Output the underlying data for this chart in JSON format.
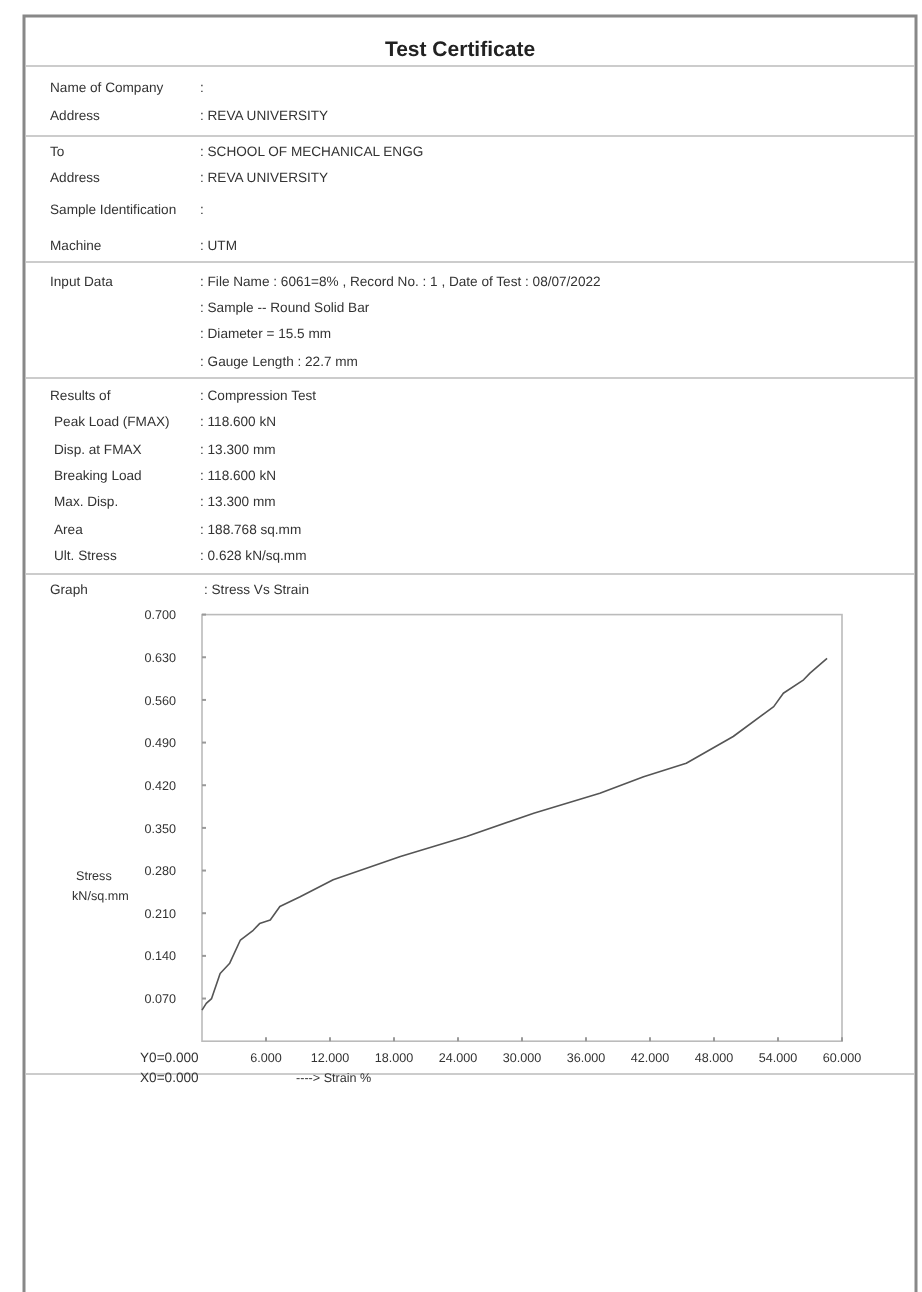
{
  "chart_data": {
    "type": "line",
    "title": "Test Certificate",
    "subtitle": ": Stress Vs Strain",
    "xlabel": "----> Strain  %",
    "ylabel": "Stress kN/sq.mm",
    "annotations": [
      "Name of Company",
      ":",
      "Address",
      ": REVA UNIVERSITY",
      "To",
      ": SCHOOL OF MECHANICAL ENGG",
      "Address",
      ": REVA UNIVERSITY",
      "Sample Identification",
      ":",
      "Machine",
      ":   UTM",
      "Input Data",
      ": File Name : 6061=8% ,    Record No. :  1 ,   Date of Test : 08/07/2022",
      ": Sample -- Round Solid Bar",
      ": Diameter =  15.5 mm",
      ": Gauge Length :  22.7 mm",
      "Results of",
      ": Compression Test",
      "Peak Load (FMAX)",
      ": 118.600  kN",
      "Disp. at FMAX",
      ": 13.300  mm",
      "Breaking Load",
      ": 118.600  kN",
      "Max. Disp.",
      ": 13.300  mm",
      "Area",
      ": 188.768  sq.mm",
      "Ult. Stress",
      ": 0.628  kN/sq.mm",
      "Graph",
      "Y0=0.000",
      "X0=0.000"
    ],
    "series": [
      {
        "color": "#555555",
        "x": [
          0,
          0.4,
          0.9,
          1.7,
          2.6,
          3.6,
          4.8,
          5.4,
          6.4,
          7.3,
          9.2,
          12.3,
          18.6,
          24.8,
          31.1,
          37.3,
          41.4,
          45.4,
          49.8,
          53.6,
          54.5,
          56.4,
          57,
          58.6
        ],
        "values": [
          0.051,
          0.062,
          0.07,
          0.111,
          0.128,
          0.166,
          0.182,
          0.193,
          0.199,
          0.221,
          0.237,
          0.265,
          0.303,
          0.336,
          0.374,
          0.407,
          0.434,
          0.456,
          0.5,
          0.549,
          0.571,
          0.593,
          0.604,
          0.628
        ]
      }
    ],
    "xlim": [
      0,
      60
    ],
    "xticks": [
      {
        "value": 6,
        "label": "6.000"
      },
      {
        "value": 12,
        "label": "12.000"
      },
      {
        "value": 18,
        "label": "18.000"
      },
      {
        "value": 24,
        "label": "24.000"
      },
      {
        "value": 30,
        "label": "30.000"
      },
      {
        "value": 36,
        "label": "36.000"
      },
      {
        "value": 42,
        "label": "42.000"
      },
      {
        "value": 48,
        "label": "48.000"
      },
      {
        "value": 54,
        "label": "54.000"
      },
      {
        "value": 60,
        "label": "60.000"
      }
    ],
    "ylim": [
      0,
      0.7
    ],
    "yticks": [
      {
        "value": 0.07,
        "label": "0.070"
      },
      {
        "value": 0.14,
        "label": "0.140"
      },
      {
        "value": 0.21,
        "label": "0.210"
      },
      {
        "value": 0.28,
        "label": "0.280"
      },
      {
        "value": 0.35,
        "label": "0.350"
      },
      {
        "value": 0.42,
        "label": "0.420"
      },
      {
        "value": 0.49,
        "label": "0.490"
      },
      {
        "value": 0.56,
        "label": "0.560"
      },
      {
        "value": 0.63,
        "label": "0.630"
      },
      {
        "value": 0.7,
        "label": "0.700"
      }
    ]
  }
}
